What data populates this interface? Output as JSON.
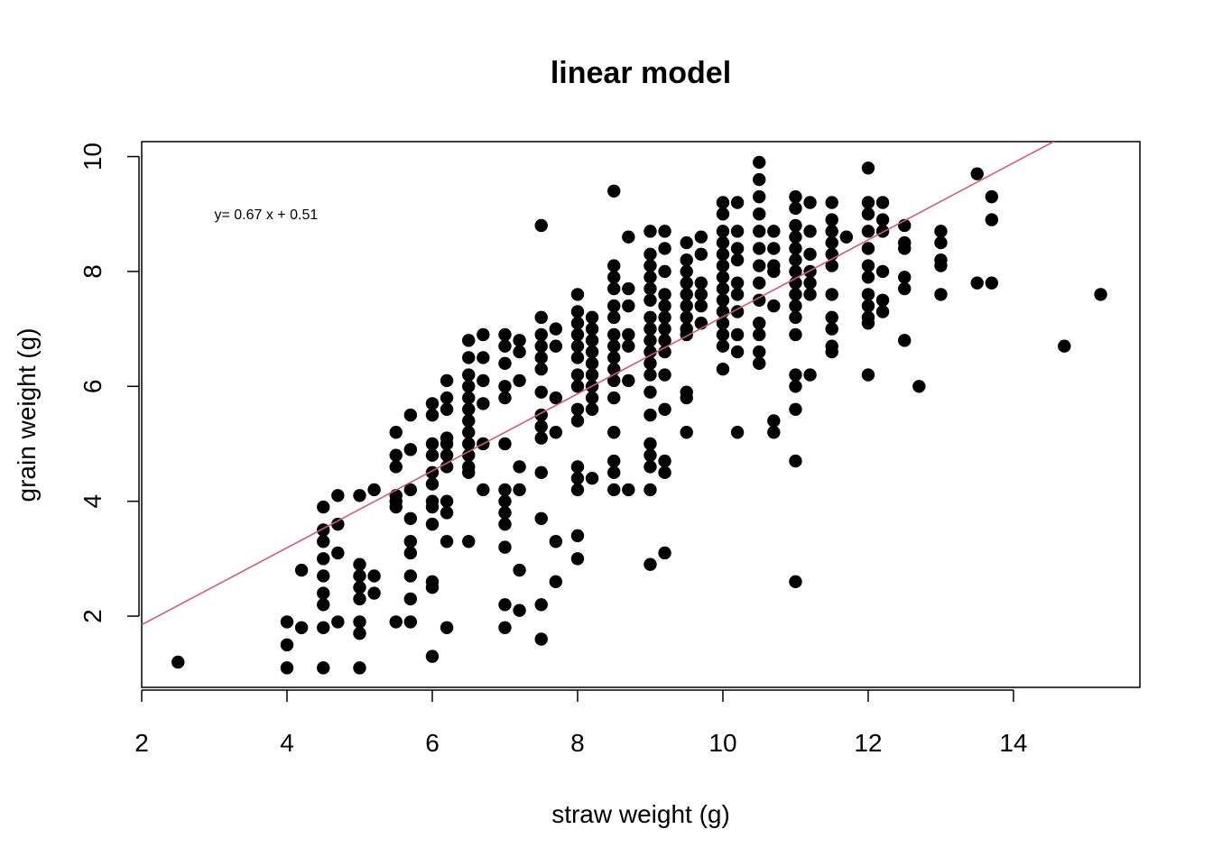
{
  "chart_data": {
    "type": "scatter",
    "title": "linear model",
    "xlabel": "straw weight (g)",
    "ylabel": "grain weight (g)",
    "xlim": [
      2,
      15.74
    ],
    "ylim": [
      0.76,
      10.26
    ],
    "xticks": [
      "2",
      "4",
      "6",
      "8",
      "10",
      "12",
      "14"
    ],
    "yticks": [
      "2",
      "4",
      "6",
      "8",
      "10"
    ],
    "grid": false,
    "point_color": "#000000",
    "fit_line": {
      "slope": 0.67,
      "intercept": 0.51,
      "color": "#d05c70"
    },
    "annotation": {
      "text": "y= 0.67 x +  0.51",
      "x": 3.0,
      "y": 9.0
    },
    "points": [
      [
        2.5,
        1.2
      ],
      [
        4.0,
        1.9
      ],
      [
        4.0,
        1.5
      ],
      [
        4.0,
        1.1
      ],
      [
        4.2,
        2.8
      ],
      [
        4.2,
        1.8
      ],
      [
        4.5,
        3.9
      ],
      [
        4.5,
        3.5
      ],
      [
        4.5,
        3.3
      ],
      [
        4.5,
        3.0
      ],
      [
        4.5,
        2.7
      ],
      [
        4.5,
        2.4
      ],
      [
        4.5,
        2.2
      ],
      [
        4.5,
        1.8
      ],
      [
        4.5,
        1.1
      ],
      [
        4.7,
        4.1
      ],
      [
        4.7,
        3.6
      ],
      [
        4.7,
        3.1
      ],
      [
        4.7,
        1.9
      ],
      [
        5.0,
        4.1
      ],
      [
        5.0,
        2.9
      ],
      [
        5.0,
        2.7
      ],
      [
        5.0,
        2.5
      ],
      [
        5.0,
        2.3
      ],
      [
        5.0,
        1.9
      ],
      [
        5.0,
        1.7
      ],
      [
        5.0,
        1.1
      ],
      [
        5.2,
        4.2
      ],
      [
        5.2,
        2.7
      ],
      [
        5.2,
        2.4
      ],
      [
        5.5,
        5.2
      ],
      [
        5.5,
        4.8
      ],
      [
        5.5,
        4.6
      ],
      [
        5.5,
        4.1
      ],
      [
        5.5,
        4.0
      ],
      [
        5.5,
        3.9
      ],
      [
        5.5,
        1.9
      ],
      [
        5.7,
        5.5
      ],
      [
        5.7,
        4.9
      ],
      [
        5.7,
        4.2
      ],
      [
        5.7,
        3.7
      ],
      [
        5.7,
        3.3
      ],
      [
        5.7,
        3.1
      ],
      [
        5.7,
        2.7
      ],
      [
        5.7,
        2.3
      ],
      [
        5.7,
        1.9
      ],
      [
        6.0,
        5.7
      ],
      [
        6.0,
        5.5
      ],
      [
        6.0,
        5.0
      ],
      [
        6.0,
        4.8
      ],
      [
        6.0,
        4.5
      ],
      [
        6.0,
        4.3
      ],
      [
        6.0,
        4.0
      ],
      [
        6.0,
        3.9
      ],
      [
        6.0,
        3.6
      ],
      [
        6.0,
        2.6
      ],
      [
        6.0,
        2.5
      ],
      [
        6.0,
        1.3
      ],
      [
        6.2,
        6.1
      ],
      [
        6.2,
        5.8
      ],
      [
        6.2,
        5.6
      ],
      [
        6.2,
        5.1
      ],
      [
        6.2,
        5.0
      ],
      [
        6.2,
        4.8
      ],
      [
        6.2,
        4.6
      ],
      [
        6.2,
        4.0
      ],
      [
        6.2,
        3.8
      ],
      [
        6.2,
        3.3
      ],
      [
        6.2,
        1.8
      ],
      [
        6.5,
        6.8
      ],
      [
        6.5,
        6.5
      ],
      [
        6.5,
        6.2
      ],
      [
        6.5,
        6.0
      ],
      [
        6.5,
        5.8
      ],
      [
        6.5,
        5.6
      ],
      [
        6.5,
        5.4
      ],
      [
        6.5,
        5.2
      ],
      [
        6.5,
        5.0
      ],
      [
        6.5,
        4.8
      ],
      [
        6.5,
        4.6
      ],
      [
        6.5,
        4.5
      ],
      [
        6.5,
        3.3
      ],
      [
        6.7,
        6.9
      ],
      [
        6.7,
        6.5
      ],
      [
        6.7,
        6.1
      ],
      [
        6.7,
        5.7
      ],
      [
        6.7,
        5.0
      ],
      [
        6.7,
        4.2
      ],
      [
        7.0,
        6.9
      ],
      [
        7.0,
        6.7
      ],
      [
        7.0,
        6.4
      ],
      [
        7.0,
        6.0
      ],
      [
        7.0,
        5.8
      ],
      [
        7.0,
        5.0
      ],
      [
        7.0,
        4.2
      ],
      [
        7.0,
        4.0
      ],
      [
        7.0,
        3.8
      ],
      [
        7.0,
        3.6
      ],
      [
        7.0,
        3.2
      ],
      [
        7.0,
        2.2
      ],
      [
        7.0,
        1.8
      ],
      [
        7.2,
        6.8
      ],
      [
        7.2,
        6.6
      ],
      [
        7.2,
        6.1
      ],
      [
        7.2,
        4.6
      ],
      [
        7.2,
        4.2
      ],
      [
        7.2,
        2.8
      ],
      [
        7.2,
        2.1
      ],
      [
        7.5,
        8.8
      ],
      [
        7.5,
        7.2
      ],
      [
        7.5,
        6.9
      ],
      [
        7.5,
        6.7
      ],
      [
        7.5,
        6.5
      ],
      [
        7.5,
        6.3
      ],
      [
        7.5,
        5.9
      ],
      [
        7.5,
        5.5
      ],
      [
        7.5,
        5.3
      ],
      [
        7.5,
        5.1
      ],
      [
        7.5,
        4.5
      ],
      [
        7.5,
        3.7
      ],
      [
        7.5,
        2.2
      ],
      [
        7.5,
        1.6
      ],
      [
        7.7,
        7.0
      ],
      [
        7.7,
        6.7
      ],
      [
        7.7,
        5.8
      ],
      [
        7.7,
        5.2
      ],
      [
        7.7,
        3.3
      ],
      [
        7.7,
        2.6
      ],
      [
        8.0,
        7.6
      ],
      [
        8.0,
        7.3
      ],
      [
        8.0,
        7.1
      ],
      [
        8.0,
        6.9
      ],
      [
        8.0,
        6.7
      ],
      [
        8.0,
        6.5
      ],
      [
        8.0,
        6.2
      ],
      [
        8.0,
        6.0
      ],
      [
        8.0,
        5.6
      ],
      [
        8.0,
        5.4
      ],
      [
        8.0,
        4.6
      ],
      [
        8.0,
        4.4
      ],
      [
        8.0,
        4.2
      ],
      [
        8.0,
        3.4
      ],
      [
        8.0,
        3.0
      ],
      [
        8.2,
        7.2
      ],
      [
        8.2,
        7.0
      ],
      [
        8.2,
        6.8
      ],
      [
        8.2,
        6.6
      ],
      [
        8.2,
        6.4
      ],
      [
        8.2,
        6.2
      ],
      [
        8.2,
        6.0
      ],
      [
        8.2,
        5.8
      ],
      [
        8.2,
        5.6
      ],
      [
        8.2,
        4.4
      ],
      [
        8.5,
        9.4
      ],
      [
        8.5,
        8.1
      ],
      [
        8.5,
        7.9
      ],
      [
        8.5,
        7.7
      ],
      [
        8.5,
        7.4
      ],
      [
        8.5,
        7.2
      ],
      [
        8.5,
        6.9
      ],
      [
        8.5,
        6.7
      ],
      [
        8.5,
        6.5
      ],
      [
        8.5,
        6.3
      ],
      [
        8.5,
        6.1
      ],
      [
        8.5,
        5.8
      ],
      [
        8.5,
        5.2
      ],
      [
        8.5,
        4.7
      ],
      [
        8.5,
        4.5
      ],
      [
        8.5,
        4.2
      ],
      [
        8.7,
        8.6
      ],
      [
        8.7,
        7.7
      ],
      [
        8.7,
        7.4
      ],
      [
        8.7,
        6.9
      ],
      [
        8.7,
        6.7
      ],
      [
        8.7,
        6.1
      ],
      [
        8.7,
        4.2
      ],
      [
        9.0,
        8.7
      ],
      [
        9.0,
        8.3
      ],
      [
        9.0,
        8.1
      ],
      [
        9.0,
        7.9
      ],
      [
        9.0,
        7.7
      ],
      [
        9.0,
        7.5
      ],
      [
        9.0,
        7.2
      ],
      [
        9.0,
        7.0
      ],
      [
        9.0,
        6.8
      ],
      [
        9.0,
        6.6
      ],
      [
        9.0,
        6.4
      ],
      [
        9.0,
        6.2
      ],
      [
        9.0,
        5.9
      ],
      [
        9.0,
        5.5
      ],
      [
        9.0,
        5.0
      ],
      [
        9.0,
        4.8
      ],
      [
        9.0,
        4.6
      ],
      [
        9.0,
        4.2
      ],
      [
        9.0,
        2.9
      ],
      [
        9.2,
        8.7
      ],
      [
        9.2,
        8.4
      ],
      [
        9.2,
        8.0
      ],
      [
        9.2,
        7.6
      ],
      [
        9.2,
        7.4
      ],
      [
        9.2,
        7.2
      ],
      [
        9.2,
        7.0
      ],
      [
        9.2,
        6.8
      ],
      [
        9.2,
        6.6
      ],
      [
        9.2,
        6.2
      ],
      [
        9.2,
        5.6
      ],
      [
        9.2,
        4.7
      ],
      [
        9.2,
        4.5
      ],
      [
        9.2,
        3.1
      ],
      [
        9.5,
        8.5
      ],
      [
        9.5,
        8.2
      ],
      [
        9.5,
        8.0
      ],
      [
        9.5,
        7.8
      ],
      [
        9.5,
        7.6
      ],
      [
        9.5,
        7.4
      ],
      [
        9.5,
        7.2
      ],
      [
        9.5,
        7.0
      ],
      [
        9.5,
        6.9
      ],
      [
        9.5,
        5.9
      ],
      [
        9.5,
        5.8
      ],
      [
        9.5,
        5.2
      ],
      [
        9.7,
        8.6
      ],
      [
        9.7,
        8.3
      ],
      [
        9.7,
        7.8
      ],
      [
        9.7,
        7.6
      ],
      [
        9.7,
        7.4
      ],
      [
        9.7,
        7.1
      ],
      [
        10.0,
        9.2
      ],
      [
        10.0,
        9.0
      ],
      [
        10.0,
        8.7
      ],
      [
        10.0,
        8.5
      ],
      [
        10.0,
        8.3
      ],
      [
        10.0,
        8.1
      ],
      [
        10.0,
        7.9
      ],
      [
        10.0,
        7.7
      ],
      [
        10.0,
        7.5
      ],
      [
        10.0,
        7.3
      ],
      [
        10.0,
        7.1
      ],
      [
        10.0,
        6.9
      ],
      [
        10.0,
        6.7
      ],
      [
        10.0,
        6.3
      ],
      [
        10.2,
        9.2
      ],
      [
        10.2,
        8.7
      ],
      [
        10.2,
        8.4
      ],
      [
        10.2,
        8.2
      ],
      [
        10.2,
        7.8
      ],
      [
        10.2,
        7.6
      ],
      [
        10.2,
        7.3
      ],
      [
        10.2,
        6.9
      ],
      [
        10.2,
        6.6
      ],
      [
        10.2,
        5.2
      ],
      [
        10.5,
        9.9
      ],
      [
        10.5,
        9.6
      ],
      [
        10.5,
        9.3
      ],
      [
        10.5,
        9.0
      ],
      [
        10.5,
        8.7
      ],
      [
        10.5,
        8.4
      ],
      [
        10.5,
        8.1
      ],
      [
        10.5,
        7.8
      ],
      [
        10.5,
        7.5
      ],
      [
        10.5,
        7.1
      ],
      [
        10.5,
        6.9
      ],
      [
        10.5,
        6.6
      ],
      [
        10.5,
        6.4
      ],
      [
        10.7,
        8.7
      ],
      [
        10.7,
        8.4
      ],
      [
        10.7,
        8.1
      ],
      [
        10.7,
        8.0
      ],
      [
        10.7,
        7.4
      ],
      [
        10.7,
        5.4
      ],
      [
        10.7,
        5.2
      ],
      [
        11.0,
        9.3
      ],
      [
        11.0,
        9.1
      ],
      [
        11.0,
        8.8
      ],
      [
        11.0,
        8.6
      ],
      [
        11.0,
        8.4
      ],
      [
        11.0,
        8.2
      ],
      [
        11.0,
        8.0
      ],
      [
        11.0,
        7.8
      ],
      [
        11.0,
        7.6
      ],
      [
        11.0,
        7.4
      ],
      [
        11.0,
        7.2
      ],
      [
        11.0,
        6.9
      ],
      [
        11.0,
        6.2
      ],
      [
        11.0,
        6.0
      ],
      [
        11.0,
        5.6
      ],
      [
        11.0,
        4.7
      ],
      [
        11.0,
        2.6
      ],
      [
        11.2,
        9.2
      ],
      [
        11.2,
        8.7
      ],
      [
        11.2,
        8.3
      ],
      [
        11.2,
        8.0
      ],
      [
        11.2,
        7.8
      ],
      [
        11.2,
        7.6
      ],
      [
        11.2,
        6.2
      ],
      [
        11.5,
        9.2
      ],
      [
        11.5,
        8.9
      ],
      [
        11.5,
        8.7
      ],
      [
        11.5,
        8.5
      ],
      [
        11.5,
        8.3
      ],
      [
        11.5,
        8.1
      ],
      [
        11.5,
        7.6
      ],
      [
        11.5,
        7.2
      ],
      [
        11.5,
        7.0
      ],
      [
        11.5,
        6.7
      ],
      [
        11.5,
        6.6
      ],
      [
        11.7,
        8.6
      ],
      [
        12.0,
        9.8
      ],
      [
        12.0,
        9.2
      ],
      [
        12.0,
        9.0
      ],
      [
        12.0,
        8.7
      ],
      [
        12.0,
        8.4
      ],
      [
        12.0,
        8.1
      ],
      [
        12.0,
        7.9
      ],
      [
        12.0,
        7.6
      ],
      [
        12.0,
        7.4
      ],
      [
        12.0,
        7.2
      ],
      [
        12.0,
        7.1
      ],
      [
        12.0,
        6.2
      ],
      [
        12.2,
        9.2
      ],
      [
        12.2,
        8.9
      ],
      [
        12.2,
        8.7
      ],
      [
        12.2,
        8.0
      ],
      [
        12.2,
        7.5
      ],
      [
        12.2,
        7.3
      ],
      [
        12.5,
        8.8
      ],
      [
        12.5,
        8.5
      ],
      [
        12.5,
        8.4
      ],
      [
        12.5,
        7.9
      ],
      [
        12.5,
        7.7
      ],
      [
        12.5,
        6.8
      ],
      [
        12.7,
        6.0
      ],
      [
        13.0,
        8.7
      ],
      [
        13.0,
        8.5
      ],
      [
        13.0,
        8.2
      ],
      [
        13.0,
        8.1
      ],
      [
        13.0,
        7.6
      ],
      [
        13.5,
        9.7
      ],
      [
        13.5,
        7.8
      ],
      [
        13.7,
        9.3
      ],
      [
        13.7,
        8.9
      ],
      [
        13.7,
        7.8
      ],
      [
        14.7,
        6.7
      ],
      [
        15.2,
        7.6
      ]
    ]
  }
}
